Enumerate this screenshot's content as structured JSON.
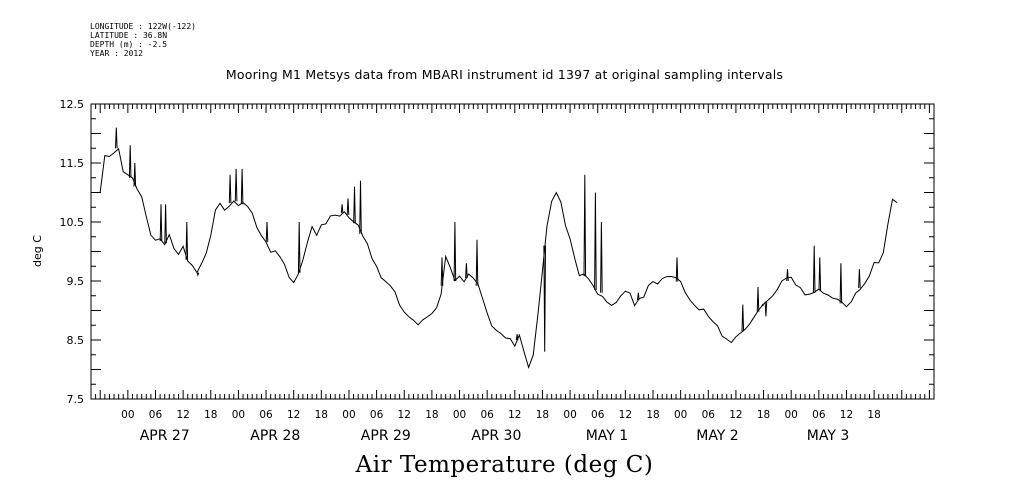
{
  "metadata": {
    "longitude": "LONGITUDE : 122W(-122)",
    "latitude": "LATITUDE : 36.8N",
    "depth": "DEPTH (m) : -2.5",
    "year": "YEAR : 2012"
  },
  "chart_data": {
    "type": "line",
    "title": "Mooring M1 Metsys data from MBARI instrument id 1397 at original sampling intervals",
    "footer_title": "Air Temperature (deg C)",
    "ylabel": "deg C",
    "xlabel": "",
    "ylim": [
      7.5,
      12.5
    ],
    "yticks": [
      "12.5",
      "11.5",
      "10.5",
      "9.5",
      "8.5",
      "7.5"
    ],
    "xlim_hours": [
      -8,
      175
    ],
    "hour_tick_labels": [
      "00",
      "06",
      "12",
      "18",
      "00",
      "06",
      "12",
      "18",
      "00",
      "06",
      "12",
      "18",
      "00",
      "06",
      "12",
      "18",
      "00",
      "06",
      "12",
      "18",
      "00",
      "06",
      "12",
      "18",
      "00",
      "06",
      "12",
      "18"
    ],
    "day_labels": [
      "APR 27",
      "APR 28",
      "APR 29",
      "APR 30",
      "MAY  1",
      "MAY  2",
      "MAY  3"
    ],
    "grid": false,
    "series": [
      {
        "x_hours_since_apr27_00": [
          -6,
          -5,
          -4,
          -3,
          -2,
          -1,
          0,
          1,
          2,
          3,
          4,
          5,
          6,
          7,
          8,
          9,
          10,
          11,
          12,
          13,
          14,
          15,
          16,
          17,
          18,
          19,
          20,
          21,
          22,
          23,
          24,
          25,
          26,
          27,
          28,
          29,
          30,
          31,
          32,
          33,
          34,
          35,
          36,
          37,
          38,
          39,
          40,
          41,
          42,
          43,
          44,
          45,
          46,
          47,
          48,
          49,
          50,
          51,
          52,
          53,
          54,
          55,
          56,
          57,
          58,
          59,
          60,
          61,
          62,
          63,
          64,
          65,
          66,
          67,
          68,
          69,
          70,
          71,
          72,
          73,
          74,
          75,
          76,
          77,
          78,
          79,
          80,
          81,
          82,
          83,
          84,
          85,
          86,
          87,
          88,
          89,
          90,
          91,
          92,
          93,
          94,
          95,
          96,
          97,
          98,
          99,
          100,
          101,
          102,
          103,
          104,
          105,
          106,
          107,
          108,
          109,
          110,
          111,
          112,
          113,
          114,
          115,
          116,
          117,
          118,
          119,
          120,
          121,
          122,
          123,
          124,
          125,
          126,
          127,
          128,
          129,
          130,
          131,
          132,
          133,
          134,
          135,
          136,
          137,
          138,
          139,
          140,
          141,
          142,
          143,
          144,
          145,
          146,
          147,
          148,
          149,
          150,
          151,
          152,
          153,
          154,
          155,
          156,
          157,
          158,
          159,
          160,
          161,
          162,
          163,
          164,
          165,
          166,
          167,
          168,
          169,
          170,
          171,
          172,
          173
        ],
        "values": [
          11.0,
          11.6,
          11.6,
          11.7,
          11.8,
          11.4,
          11.3,
          11.2,
          11.0,
          10.9,
          10.6,
          10.3,
          10.2,
          10.2,
          10.1,
          10.3,
          10.1,
          10.0,
          10.1,
          9.8,
          9.7,
          9.6,
          9.8,
          10.0,
          10.3,
          10.7,
          10.8,
          10.7,
          10.8,
          10.9,
          10.8,
          10.8,
          10.7,
          10.6,
          10.4,
          10.3,
          10.2,
          10.0,
          10.0,
          9.9,
          9.8,
          9.6,
          9.5,
          9.6,
          9.8,
          10.1,
          10.4,
          10.3,
          10.5,
          10.5,
          10.6,
          10.6,
          10.6,
          10.7,
          10.6,
          10.5,
          10.4,
          10.2,
          10.1,
          9.9,
          9.8,
          9.6,
          9.5,
          9.4,
          9.3,
          9.1,
          9.0,
          8.9,
          8.8,
          8.7,
          8.8,
          8.9,
          9.0,
          9.1,
          9.3,
          9.9,
          9.7,
          9.5,
          9.6,
          9.5,
          9.6,
          9.5,
          9.4,
          9.2,
          9.0,
          8.8,
          8.7,
          8.6,
          8.5,
          8.5,
          8.4,
          8.6,
          8.3,
          8.0,
          8.2,
          8.9,
          9.7,
          10.5,
          10.9,
          11.0,
          10.8,
          10.4,
          10.2,
          9.9,
          9.6,
          9.6,
          9.5,
          9.4,
          9.3,
          9.3,
          9.2,
          9.1,
          9.1,
          9.2,
          9.3,
          9.3,
          9.1,
          9.2,
          9.2,
          9.4,
          9.5,
          9.5,
          9.6,
          9.6,
          9.55,
          9.5,
          9.45,
          9.3,
          9.2,
          9.1,
          9.0,
          9.0,
          8.9,
          8.85,
          8.8,
          8.6,
          8.5,
          8.4,
          8.5,
          8.6,
          8.7,
          8.8,
          8.9,
          9.0,
          9.1,
          9.2,
          9.3,
          9.4,
          9.5,
          9.5,
          9.5,
          9.4,
          9.4,
          9.3,
          9.3,
          9.3,
          9.35,
          9.3,
          9.3,
          9.25,
          9.2,
          9.1,
          9.0,
          9.1,
          9.3,
          9.4,
          9.5,
          9.6,
          9.8,
          9.8,
          10.0,
          10.5,
          10.9,
          10.8
        ]
      }
    ],
    "spikes": [
      {
        "x": -2.5,
        "y": 12.1
      },
      {
        "x": 0.5,
        "y": 11.8
      },
      {
        "x": 1.5,
        "y": 11.5
      },
      {
        "x": 7.2,
        "y": 10.8
      },
      {
        "x": 8.2,
        "y": 10.8
      },
      {
        "x": 12.8,
        "y": 10.5
      },
      {
        "x": 15.2,
        "y": 9.6
      },
      {
        "x": 22.2,
        "y": 11.3
      },
      {
        "x": 23.5,
        "y": 11.4
      },
      {
        "x": 24.8,
        "y": 11.4
      },
      {
        "x": 30.2,
        "y": 10.5
      },
      {
        "x": 37.2,
        "y": 10.5
      },
      {
        "x": 46.5,
        "y": 10.8
      },
      {
        "x": 47.8,
        "y": 10.9
      },
      {
        "x": 49.2,
        "y": 11.1
      },
      {
        "x": 50.5,
        "y": 11.2
      },
      {
        "x": 68.2,
        "y": 9.9
      },
      {
        "x": 71.0,
        "y": 10.5
      },
      {
        "x": 73.5,
        "y": 9.8
      },
      {
        "x": 75.8,
        "y": 10.2
      },
      {
        "x": 84.5,
        "y": 8.6
      },
      {
        "x": 90.5,
        "y": 8.3
      },
      {
        "x": 99.2,
        "y": 11.3
      },
      {
        "x": 101.5,
        "y": 11.0
      },
      {
        "x": 102.8,
        "y": 10.5
      },
      {
        "x": 110.8,
        "y": 9.3
      },
      {
        "x": 119.2,
        "y": 9.9
      },
      {
        "x": 133.5,
        "y": 9.1
      },
      {
        "x": 136.8,
        "y": 9.4
      },
      {
        "x": 137.8,
        "y": 9.1
      },
      {
        "x": 138.5,
        "y": 8.9
      },
      {
        "x": 143.2,
        "y": 9.7
      },
      {
        "x": 149.0,
        "y": 10.1
      },
      {
        "x": 150.2,
        "y": 9.9
      },
      {
        "x": 154.8,
        "y": 9.8
      },
      {
        "x": 158.8,
        "y": 9.7
      }
    ]
  }
}
